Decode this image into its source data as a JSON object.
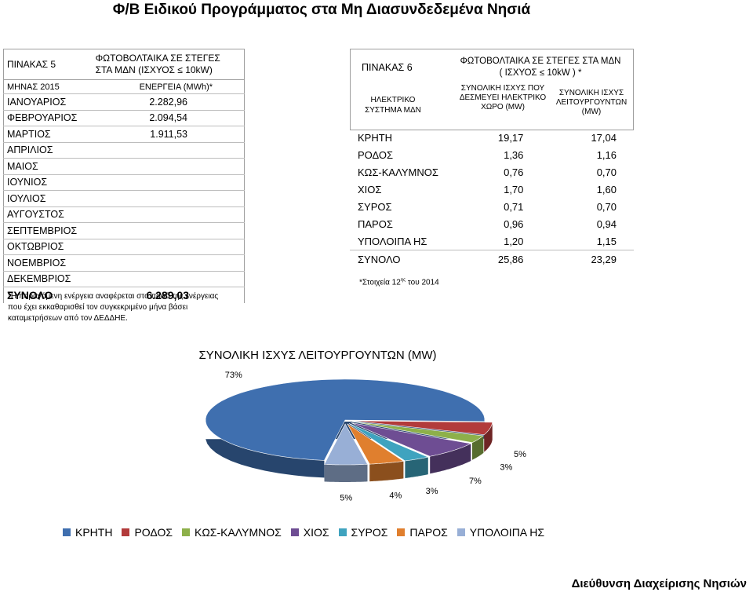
{
  "page": {
    "title": "Φ/Β Ειδικού Προγράμματος στα Μη Διασυνδεδεμένα Νησιά",
    "footer": "Διεύθυνση Διαχείρισης Νησιών"
  },
  "table5": {
    "label": "ΠΙΝΑΚΑΣ 5",
    "title_line1": "ΦΩΤΟΒΟΛΤΑΙΚΑ ΣΕ ΣΤΕΓΕΣ",
    "title_line2": "ΣΤΑ ΜΔΝ (ΙΣΧΥΟΣ ≤ 10kW)",
    "col_month": "ΜΗΝΑΣ 2015",
    "col_energy": "ΕΝΕΡΓΕΙΑ (MWh)*",
    "rows": [
      {
        "month": "ΙΑΝΟΥΑΡΙΟΣ",
        "value": "2.282,96"
      },
      {
        "month": "ΦΕΒΡΟΥΑΡΙΟΣ",
        "value": "2.094,54"
      },
      {
        "month": "ΜΑΡΤΙΟΣ",
        "value": "1.911,53"
      },
      {
        "month": "ΑΠΡΙΛΙΟΣ",
        "value": ""
      },
      {
        "month": "ΜΑΙΟΣ",
        "value": ""
      },
      {
        "month": "ΙΟΥΝΙΟΣ",
        "value": ""
      },
      {
        "month": "ΙΟΥΛΙΟΣ",
        "value": ""
      },
      {
        "month": "ΑΥΓΟΥΣΤΟΣ",
        "value": ""
      },
      {
        "month": "ΣΕΠΤΕΜΒΡΙΟΣ",
        "value": ""
      },
      {
        "month": "ΟΚΤΩΒΡΙΟΣ",
        "value": ""
      },
      {
        "month": "ΝΟΕΜΒΡΙΟΣ",
        "value": ""
      },
      {
        "month": "ΔΕΚΕΜΒΡΙΟΣ",
        "value": ""
      }
    ],
    "total_label": "ΣΥΝΟΛΟ",
    "total_value": "6.289,03",
    "footnote": "*Η παραγόμενη ενέργεια αναφέρεται στο ποσό της ενέργειας που έχει εκκαθαρισθεί τον συγκεκριμένο μήνα βάσει καταμετρήσεων από τον ΔΕΔΔΗΕ."
  },
  "table6": {
    "label": "ΠΙΝΑΚΑΣ 6",
    "system_label": "ΗΛΕΚΤΡΙΚΟ ΣΥΣΤΗΜΑ ΜΔΝ",
    "title_line1": "ΦΩΤΟΒΟΛΤΑΙΚΑ ΣΕ ΣΤΕΓΕΣ ΣΤΑ ΜΔΝ",
    "title_line2": "( ΙΣΧΥΟΣ ≤ 10kW ) *",
    "col1": "ΣΥΝΟΛΙΚΗ ΙΣΧΥΣ ΠΟΥ ΔΕΣΜΕΥΕΙ ΗΛΕΚΤΡΙΚΟ ΧΩΡΟ (MW)",
    "col2": "ΣΥΝΟΛΙΚΗ ΙΣΧΥΣ ΛΕΙΤΟΥΡΓΟΥΝΤΩΝ (MW)",
    "rows": [
      {
        "name": "ΚΡΗΤΗ",
        "reserved": "19,17",
        "operating": "17,04"
      },
      {
        "name": "ΡΟΔΟΣ",
        "reserved": "1,36",
        "operating": "1,16"
      },
      {
        "name": "ΚΩΣ-ΚΑΛΥΜΝΟΣ",
        "reserved": "0,76",
        "operating": "0,70"
      },
      {
        "name": "ΧΙΟΣ",
        "reserved": "1,70",
        "operating": "1,60"
      },
      {
        "name": "ΣΥΡΟΣ",
        "reserved": "0,71",
        "operating": "0,70"
      },
      {
        "name": "ΠΑΡΟΣ",
        "reserved": "0,96",
        "operating": "0,94"
      },
      {
        "name": "ΥΠΟΛΟΙΠΑ ΗΣ",
        "reserved": "1,20",
        "operating": "1,15"
      },
      {
        "name": "ΣΥΝΟΛΟ",
        "reserved": "25,86",
        "operating": "23,29"
      }
    ],
    "footnote_main": "*Στοιχεία 12",
    "footnote_sup": "ης",
    "footnote_tail": " του 2014"
  },
  "chart_data": {
    "type": "pie",
    "title": "ΣΥΝΟΛΙΚΗ ΙΣΧΥΣ ΛΕΙΤΟΥΡΓΟΥΝΤΩΝ (MW)",
    "categories": [
      "ΚΡΗΤΗ",
      "ΡΟΔΟΣ",
      "ΚΩΣ-ΚΑΛΥΜΝΟΣ",
      "ΧΙΟΣ",
      "ΣΥΡΟΣ",
      "ΠΑΡΟΣ",
      "ΥΠΟΛΟΙΠΑ ΗΣ"
    ],
    "values": [
      17.04,
      1.16,
      0.7,
      1.6,
      0.7,
      0.94,
      1.15
    ],
    "labels": [
      "73%",
      "5%",
      "3%",
      "7%",
      "3%",
      "4%",
      "5%"
    ],
    "colors": [
      "#3F6FAF",
      "#B23B3B",
      "#8DB04A",
      "#6E4D93",
      "#3FA3BF",
      "#E07F2E",
      "#98AFD6"
    ],
    "legend_position": "bottom",
    "style": "3d-exploded"
  }
}
